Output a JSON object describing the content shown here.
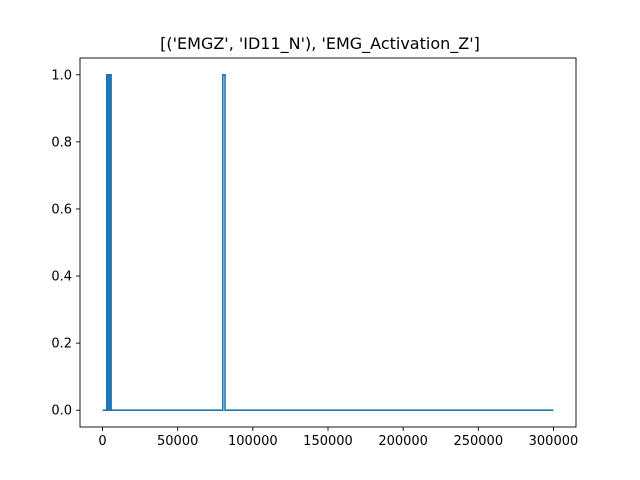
{
  "chart_data": {
    "type": "line",
    "title": "[('EMGZ', 'ID11_N'), 'EMG_Activation_Z']",
    "xlabel": "",
    "ylabel": "",
    "xlim": [
      -15000,
      315000
    ],
    "ylim": [
      -0.05,
      1.05
    ],
    "xticks": [
      0,
      50000,
      100000,
      150000,
      200000,
      250000,
      300000
    ],
    "xtick_labels": [
      "0",
      "50000",
      "100000",
      "150000",
      "200000",
      "250000",
      "300000"
    ],
    "yticks": [
      0.0,
      0.2,
      0.4,
      0.6,
      0.8,
      1.0
    ],
    "ytick_labels": [
      "0.0",
      "0.2",
      "0.4",
      "0.6",
      "0.8",
      "1.0"
    ],
    "grid": false,
    "series": [
      {
        "color": "#1f77b4",
        "x": [
          0,
          2800,
          2800,
          3100,
          3100,
          3500,
          3500,
          3800,
          3800,
          4200,
          4200,
          4500,
          4500,
          4800,
          4800,
          5100,
          5100,
          5400,
          5400,
          5700,
          5700,
          6000,
          6000,
          80000,
          80000,
          81500,
          81500,
          300000
        ],
        "y": [
          0,
          0,
          1,
          1,
          0,
          0,
          1,
          1,
          0,
          0,
          1,
          1,
          0,
          0,
          1,
          1,
          0,
          0,
          1,
          1,
          0,
          0,
          0,
          0,
          1,
          1,
          0,
          0
        ]
      }
    ]
  }
}
